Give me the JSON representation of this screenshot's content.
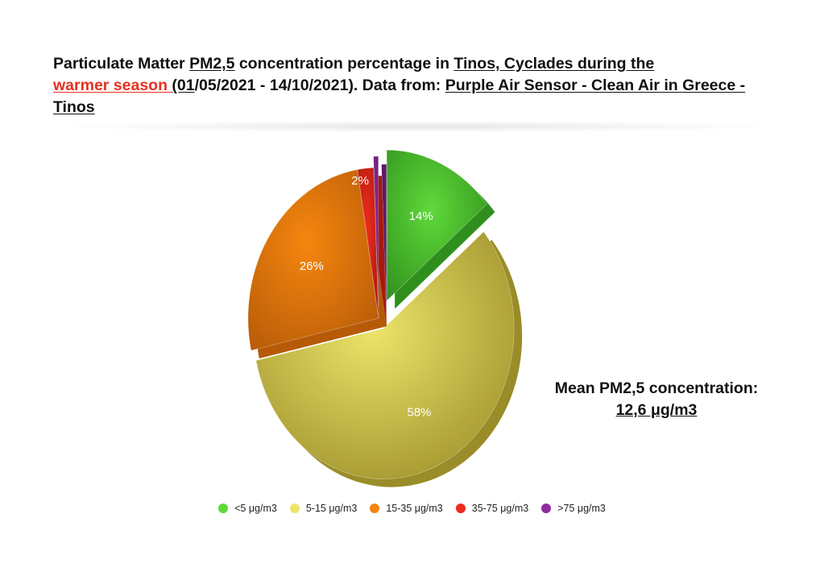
{
  "chart_data": {
    "type": "pie",
    "title": {
      "t1": "Particulate Matter ",
      "t2": "PM2,5",
      "t3": " concentration percentage in ",
      "t4": "Tinos, Cyclades during the",
      "t5": "warmer season ",
      "t6": "(01",
      "t7": "/05/2021 - 14/10/2021). Data from: ",
      "t8": "Purple Air Sensor - Clean Air in Greece - Tinos"
    },
    "slices": [
      {
        "label": "<5 μg/m3",
        "value": 14,
        "data_label": "14%",
        "color": "#5fd93a",
        "side": "#2f8f1c",
        "exploded": true
      },
      {
        "label": "5-15 μg/m3",
        "value": 58,
        "data_label": "58%",
        "color": "#ece46a",
        "side": "#9a8c28",
        "exploded": true
      },
      {
        "label": "15-35 μg/m3",
        "value": 26,
        "data_label": "26%",
        "color": "#f5860f",
        "side": "#b65a08",
        "exploded": false
      },
      {
        "label": "35-75 μg/m3",
        "value": 2,
        "data_label": "2%",
        "color": "#ee2c1d",
        "side": "#a8180d",
        "exploded": false
      },
      {
        "label": ">75 μg/m3",
        "value": 0.6,
        "data_label": "",
        "color": "#8f2b9e",
        "side": "#5c1a68",
        "exploded": true
      }
    ],
    "legend_position": "bottom",
    "annotation": {
      "line1": "Mean PM2,5 concentration:",
      "line2": "12,6 μg/m3"
    }
  }
}
